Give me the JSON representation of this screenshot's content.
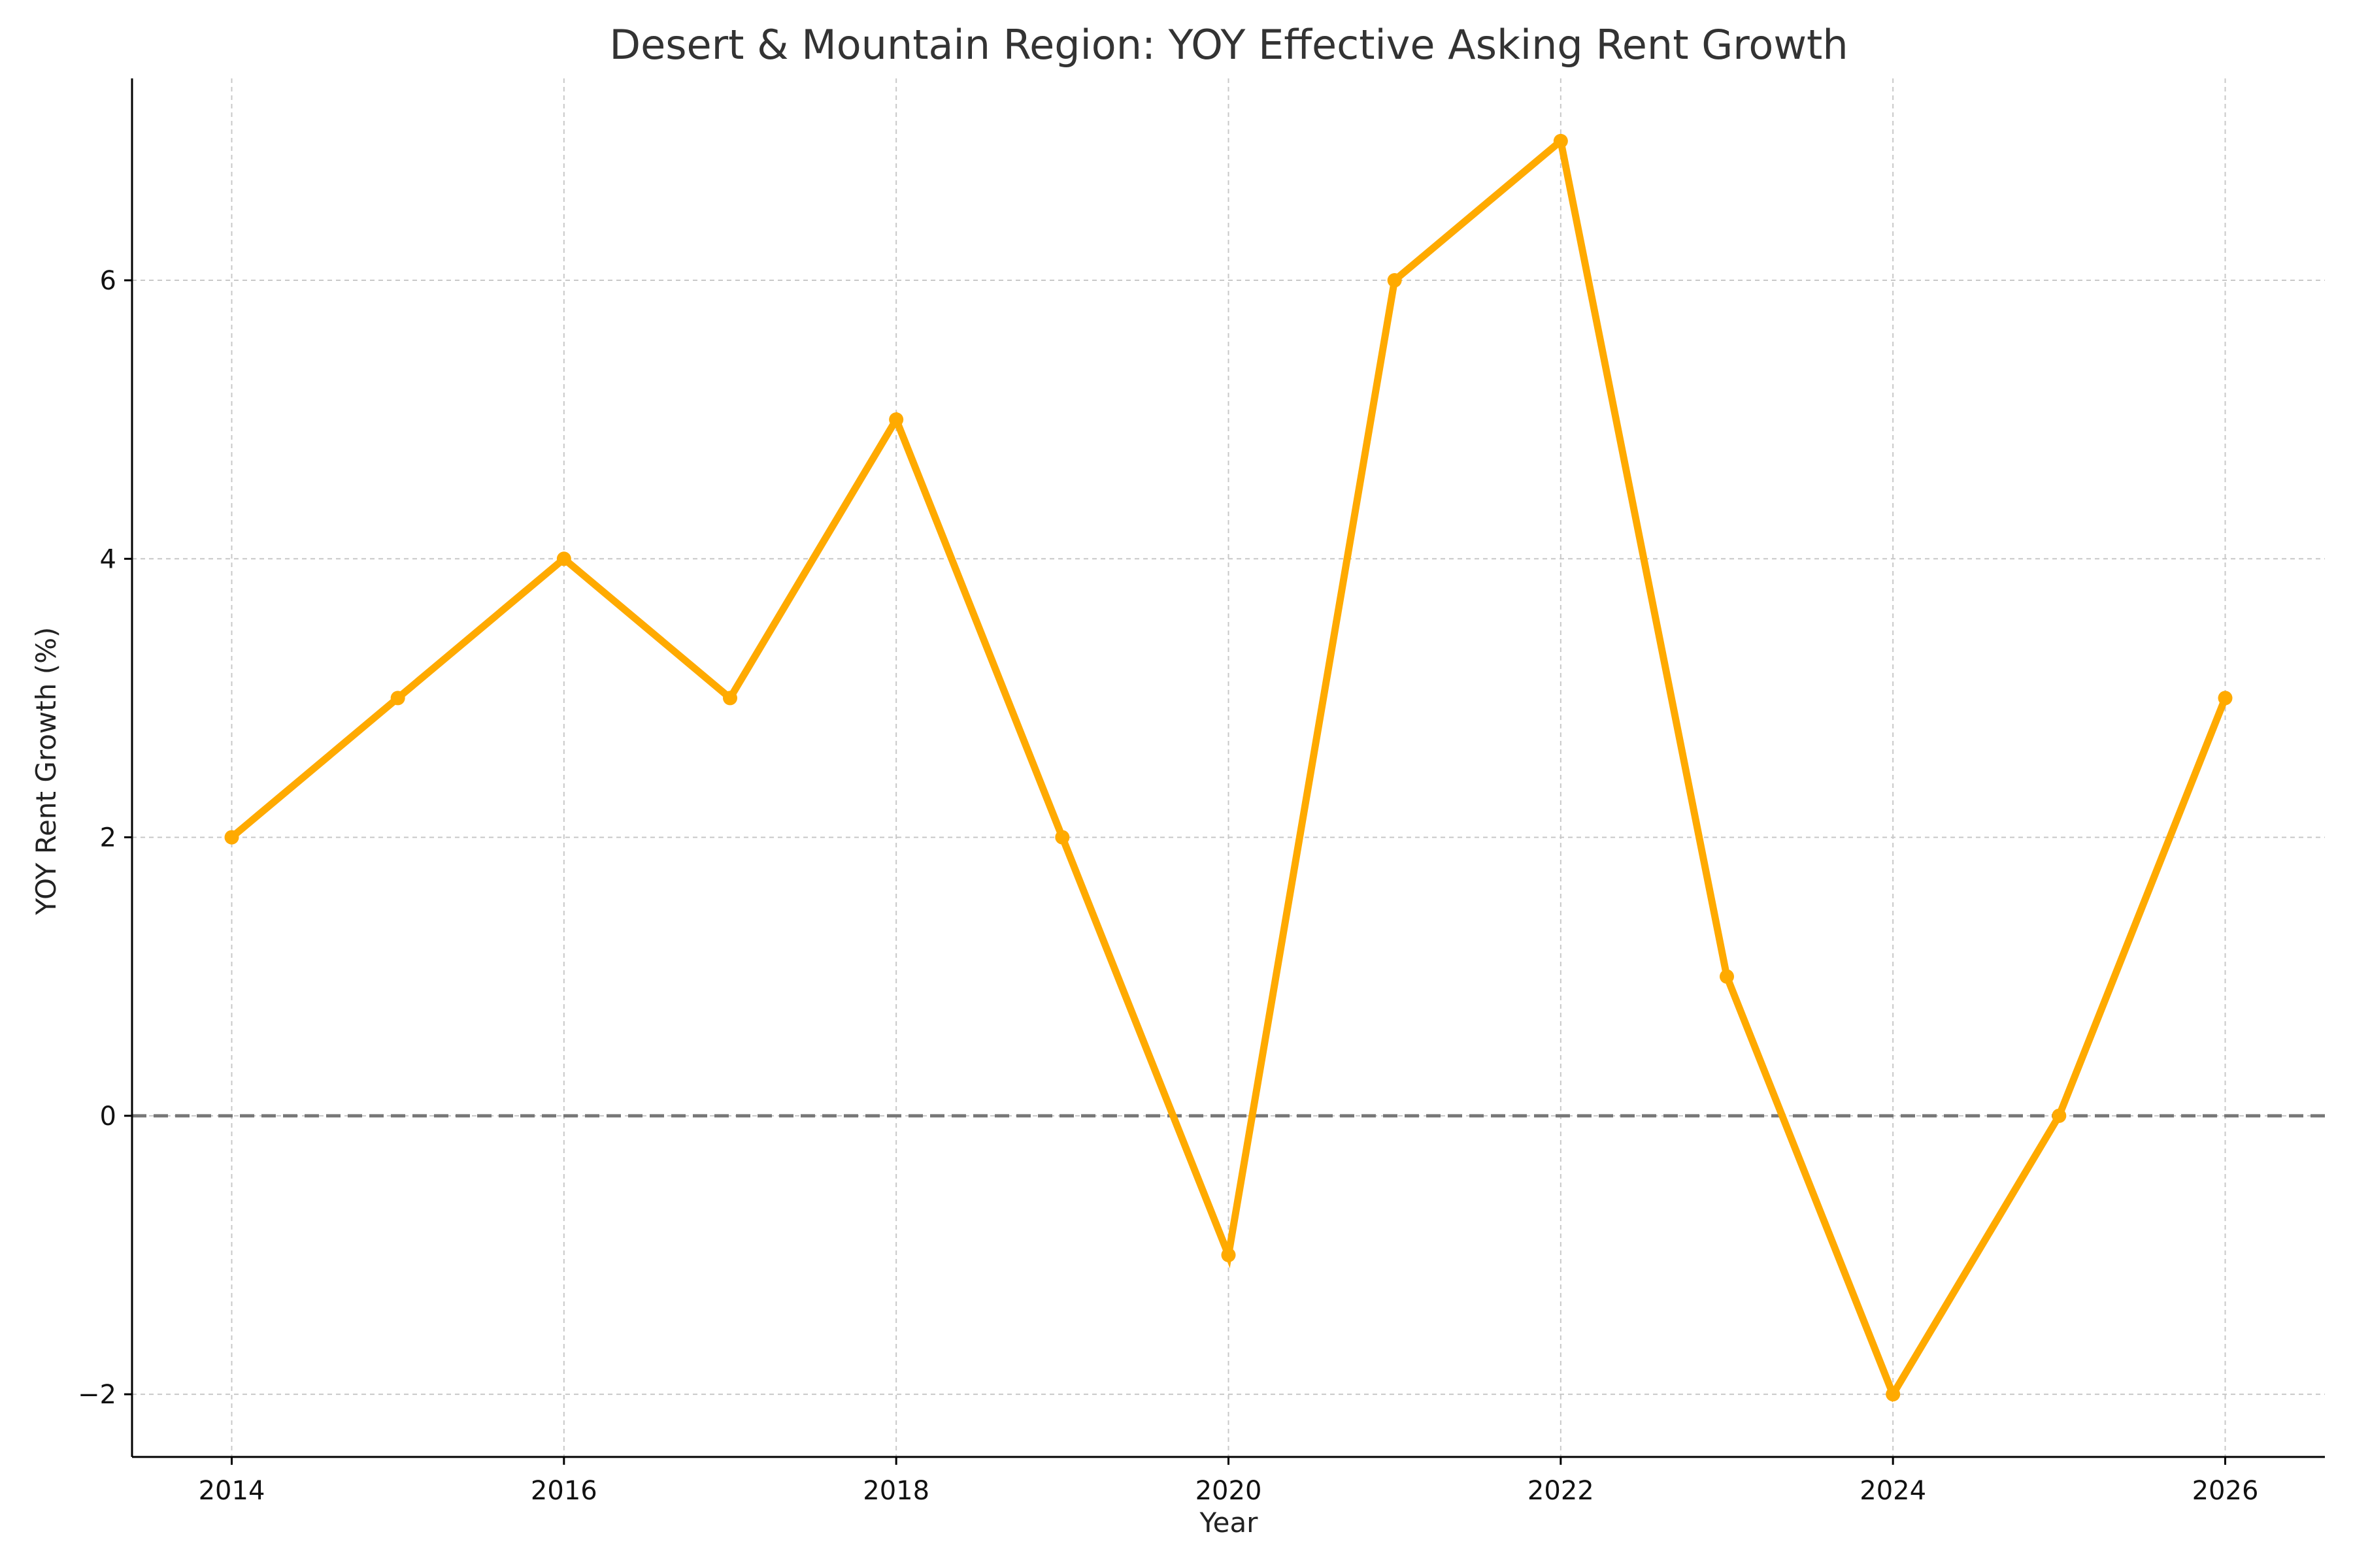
{
  "chart_data": {
    "type": "line",
    "title": "Desert & Mountain Region: YOY Effective Asking Rent Growth",
    "xlabel": "Year",
    "ylabel": "YOY Rent Growth (%)",
    "x": [
      2014,
      2015,
      2016,
      2017,
      2018,
      2019,
      2020,
      2021,
      2022,
      2023,
      2024,
      2025,
      2026
    ],
    "series": [
      {
        "values": [
          2,
          3,
          4,
          3,
          5,
          2,
          -1,
          6,
          7,
          1,
          -2,
          0,
          3
        ]
      }
    ],
    "xlim": [
      2013.4,
      2026.6
    ],
    "ylim": [
      -2.45,
      7.45
    ],
    "x_ticks": [
      2014,
      2016,
      2018,
      2020,
      2022,
      2024,
      2026
    ],
    "x_tick_labels": [
      "2014",
      "2016",
      "2018",
      "2020",
      "2022",
      "2024",
      "2026"
    ],
    "y_ticks": [
      -2,
      0,
      2,
      4,
      6
    ],
    "y_tick_labels": [
      "−2",
      "0",
      "2",
      "4",
      "6"
    ],
    "grid": true,
    "reference_line": {
      "y": 0,
      "style": "dashed"
    },
    "colors": {
      "line": "#FFAA00",
      "reference_line": "#777777"
    }
  }
}
